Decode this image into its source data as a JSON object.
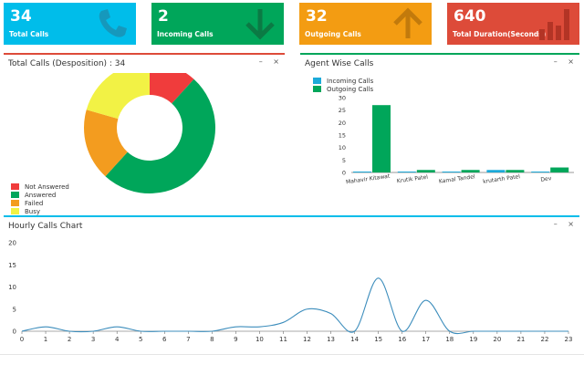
{
  "cards": [
    {
      "value": "34",
      "label": "Total Calls",
      "color": "#00bdea",
      "icon": "phone-icon"
    },
    {
      "value": "2",
      "label": "Incoming Calls",
      "color": "#00a65a",
      "icon": "arrow-down-icon"
    },
    {
      "value": "32",
      "label": "Outgoing Calls",
      "color": "#f39c12",
      "icon": "arrow-up-icon"
    },
    {
      "value": "640",
      "label": "Total Duration(Seconds)",
      "color": "#dd4b39",
      "icon": "bar-chart-icon"
    }
  ],
  "panels": {
    "disposition": {
      "title": "Total Calls (Desposition) : 34",
      "minimize": "–",
      "close": "×"
    },
    "agent": {
      "title": "Agent Wise Calls",
      "minimize": "–",
      "close": "×"
    },
    "hourly": {
      "title": "Hourly Calls Chart",
      "minimize": "–",
      "close": "×"
    }
  },
  "chart_data": [
    {
      "type": "pie",
      "variant": "donut",
      "categories": [
        "Not Answered",
        "Answered",
        "Failed",
        "Busy"
      ],
      "values": [
        4,
        17,
        6,
        7
      ],
      "colors": [
        "#f03c3c",
        "#00a65a",
        "#f39c1f",
        "#f2f245"
      ],
      "legend_position": "bottom-left"
    },
    {
      "type": "bar",
      "categories": [
        "Mahavir Kitawat",
        "Krutik Patel",
        "Kamal Tandel",
        "krutarth Patel",
        "Dev"
      ],
      "series": [
        {
          "name": "Incoming Calls",
          "values": [
            0,
            0,
            0,
            1,
            0
          ],
          "color": "#1caad9"
        },
        {
          "name": "Outgoing Calls",
          "values": [
            27,
            1,
            1,
            1,
            2
          ],
          "color": "#00a65a"
        }
      ],
      "ylim": [
        0,
        30
      ],
      "yticks": [
        0,
        5,
        10,
        15,
        20,
        25,
        30
      ],
      "legend_position": "top-left"
    },
    {
      "type": "line",
      "x": [
        0,
        1,
        2,
        3,
        4,
        5,
        6,
        7,
        8,
        9,
        10,
        11,
        12,
        13,
        14,
        15,
        16,
        17,
        18,
        19,
        20,
        21,
        22,
        23
      ],
      "values": [
        0,
        1,
        0,
        0,
        1,
        0,
        0,
        0,
        0,
        1,
        1,
        2,
        5,
        4,
        0,
        12,
        0,
        7,
        0,
        0,
        0,
        0,
        0,
        0
      ],
      "ylim": [
        0,
        20
      ],
      "yticks": [
        0,
        5,
        10,
        15,
        20
      ],
      "color": "#3c8dbc",
      "grid": false
    }
  ]
}
